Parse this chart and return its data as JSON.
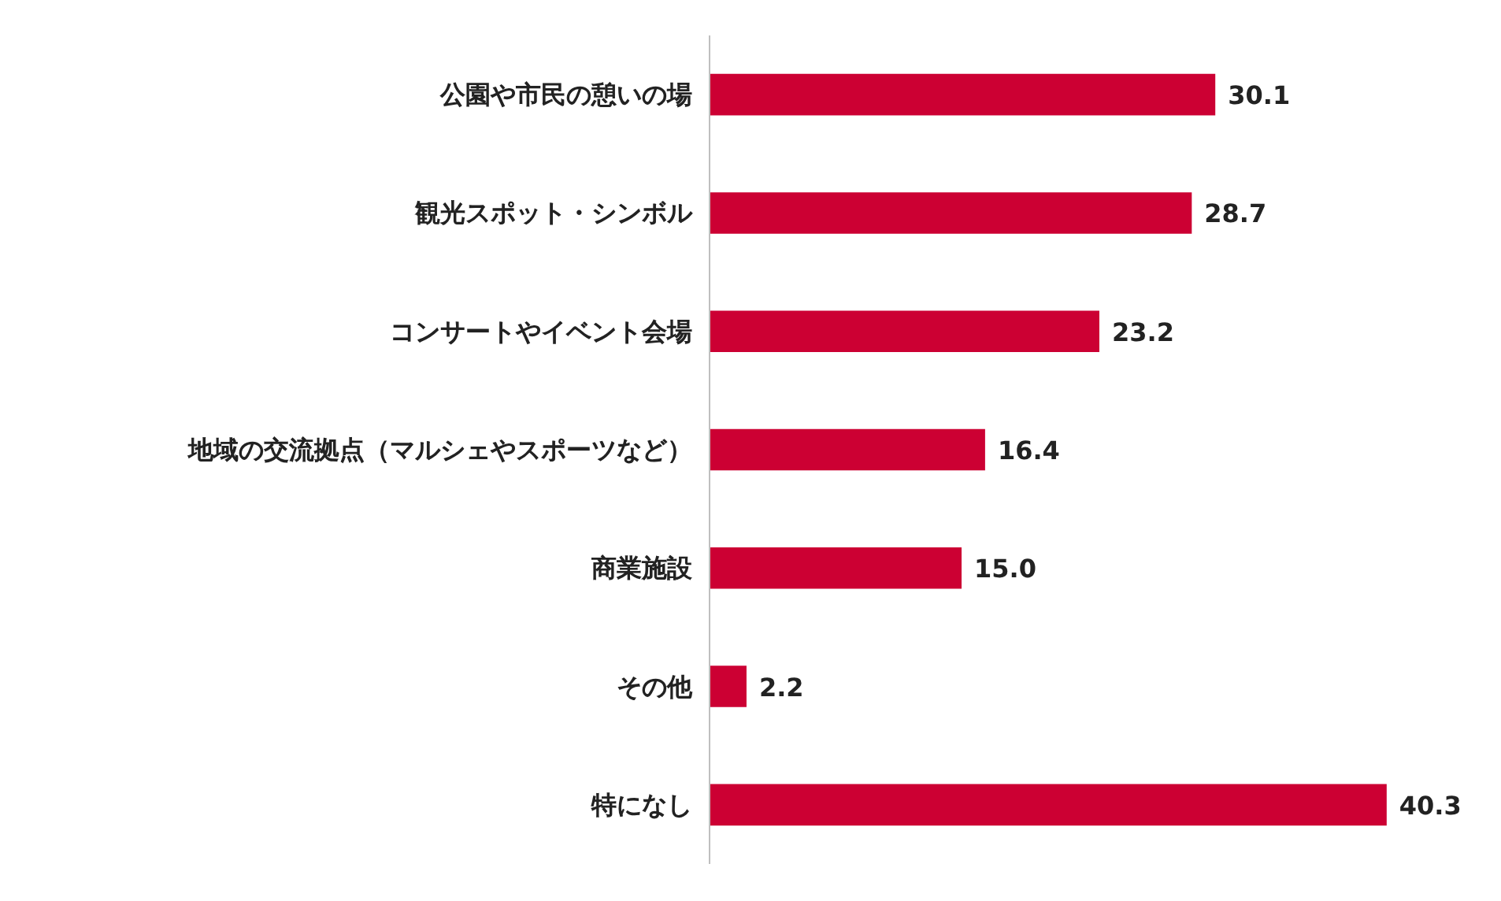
{
  "chart_data": {
    "type": "bar",
    "orientation": "horizontal",
    "categories": [
      "公園や市民の憩いの場",
      "観光スポット・シンボル",
      "コンサートやイベント会場",
      "地域の交流拠点（マルシェやスポーツなど）",
      "商業施設",
      "その他",
      "特になし"
    ],
    "values": [
      30.1,
      28.7,
      23.2,
      16.4,
      15.0,
      2.2,
      40.3
    ],
    "color": "#cc0033",
    "value_labels": [
      "30.1",
      "28.7",
      "23.2",
      "16.4",
      "15.0",
      "2.2",
      "40.3"
    ]
  }
}
